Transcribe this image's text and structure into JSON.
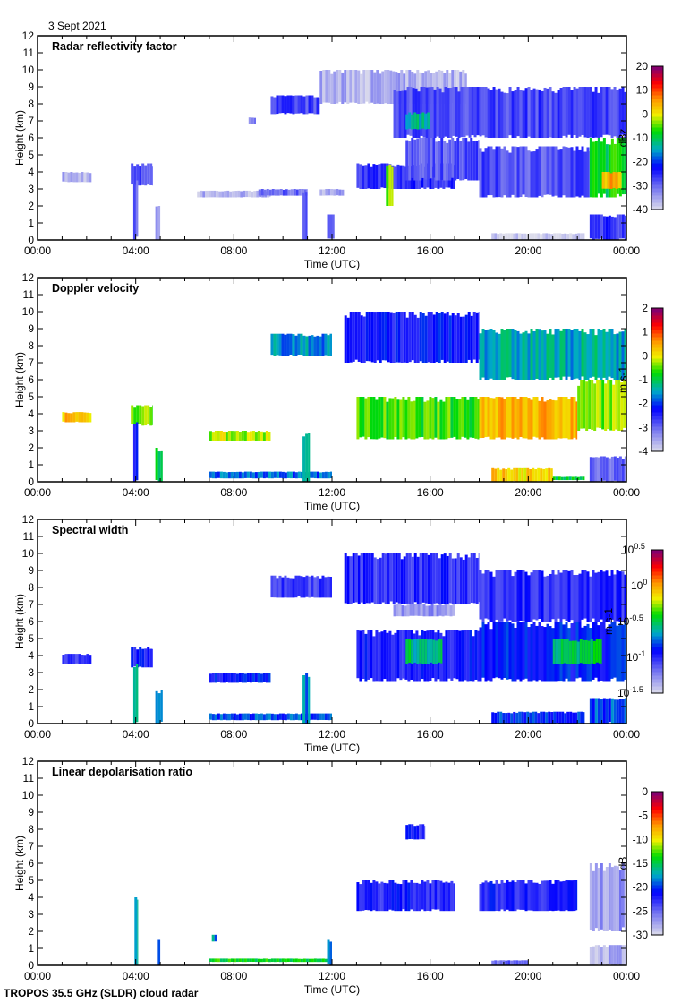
{
  "header": {
    "date": "3 Sept 2021"
  },
  "footer": {
    "caption": "TROPOS 35.5 GHz (SLDR) cloud radar"
  },
  "chart_data": [
    {
      "type": "heatmap",
      "title": "Radar reflectivity factor",
      "xlabel": "Time (UTC)",
      "ylabel": "Height (km)",
      "xlim": [
        0,
        24
      ],
      "ylim": [
        0,
        12
      ],
      "xticks": [
        "00:00",
        "04:00",
        "08:00",
        "12:00",
        "16:00",
        "20:00",
        "00:00"
      ],
      "yticks": [
        0,
        1,
        2,
        3,
        4,
        5,
        6,
        7,
        8,
        9,
        10,
        11,
        12
      ],
      "colorbar": {
        "label": "dBz",
        "range": [
          -40,
          20
        ],
        "ticks": [
          "20",
          "10",
          "0",
          "-10",
          "-20",
          "-30",
          "-40"
        ],
        "scale": "linear"
      },
      "regions": [
        {
          "t": [
            1.0,
            2.2
          ],
          "h": [
            3.4,
            4.0
          ],
          "v": -36
        },
        {
          "t": [
            3.8,
            4.7
          ],
          "h": [
            3.2,
            4.5
          ],
          "v": -28
        },
        {
          "t": [
            3.9,
            4.1
          ],
          "h": [
            0,
            3.5
          ],
          "v": -30
        },
        {
          "t": [
            4.8,
            5.0
          ],
          "h": [
            0,
            2.0
          ],
          "v": -33
        },
        {
          "t": [
            6.5,
            9.5
          ],
          "h": [
            2.5,
            2.9
          ],
          "v": -36
        },
        {
          "t": [
            8.6,
            8.9
          ],
          "h": [
            6.8,
            7.2
          ],
          "v": -30
        },
        {
          "t": [
            9.5,
            11.5
          ],
          "h": [
            7.4,
            8.5
          ],
          "v": -27
        },
        {
          "t": [
            9.0,
            11.0
          ],
          "h": [
            2.6,
            3.0
          ],
          "v": -30
        },
        {
          "t": [
            11.5,
            12.5
          ],
          "h": [
            2.6,
            3.0
          ],
          "v": -35
        },
        {
          "t": [
            10.8,
            11.0
          ],
          "h": [
            0,
            3.0
          ],
          "v": -30
        },
        {
          "t": [
            11.8,
            12.1
          ],
          "h": [
            0,
            1.5
          ],
          "v": -26
        },
        {
          "t": [
            11.5,
            17.5
          ],
          "h": [
            8.0,
            10.0
          ],
          "v": -36
        },
        {
          "t": [
            13.0,
            17.0
          ],
          "h": [
            3.0,
            4.5
          ],
          "v": -25
        },
        {
          "t": [
            14.2,
            14.5
          ],
          "h": [
            2.0,
            4.5
          ],
          "v": -5
        },
        {
          "t": [
            15.0,
            18.0
          ],
          "h": [
            3.5,
            6.0
          ],
          "v": -28
        },
        {
          "t": [
            14.5,
            24.0
          ],
          "h": [
            6.0,
            9.0
          ],
          "v": -27
        },
        {
          "t": [
            15.0,
            16.0
          ],
          "h": [
            6.5,
            7.5
          ],
          "v": -12
        },
        {
          "t": [
            18.0,
            22.5
          ],
          "h": [
            2.5,
            5.5
          ],
          "v": -28
        },
        {
          "t": [
            22.5,
            24.0
          ],
          "h": [
            2.5,
            6.0
          ],
          "v": -8
        },
        {
          "t": [
            23.0,
            23.8
          ],
          "h": [
            3.0,
            4.0
          ],
          "v": 5
        },
        {
          "t": [
            18.5,
            22.3
          ],
          "h": [
            0,
            0.4
          ],
          "v": -39
        },
        {
          "t": [
            22.5,
            24.0
          ],
          "h": [
            0,
            1.5
          ],
          "v": -25
        }
      ]
    },
    {
      "type": "heatmap",
      "title": "Doppler velocity",
      "xlabel": "Time (UTC)",
      "ylabel": "Height (km)",
      "xlim": [
        0,
        24
      ],
      "ylim": [
        0,
        12
      ],
      "xticks": [
        "00:00",
        "04:00",
        "08:00",
        "12:00",
        "16:00",
        "20:00",
        "00:00"
      ],
      "yticks": [
        0,
        1,
        2,
        3,
        4,
        5,
        6,
        7,
        8,
        9,
        10,
        11,
        12
      ],
      "colorbar": {
        "label": "m s-1",
        "range": [
          -4,
          2
        ],
        "ticks": [
          "2",
          "1",
          "0",
          "-1",
          "-2",
          "-3",
          "-4"
        ],
        "scale": "linear"
      },
      "regions": [
        {
          "t": [
            1.0,
            2.2
          ],
          "h": [
            3.5,
            4.1
          ],
          "v": 0.3
        },
        {
          "t": [
            3.8,
            4.7
          ],
          "h": [
            3.3,
            4.5
          ],
          "v": -0.4
        },
        {
          "t": [
            3.9,
            4.1
          ],
          "h": [
            0,
            3.5
          ],
          "v": -2.2
        },
        {
          "t": [
            4.8,
            5.1
          ],
          "h": [
            0,
            2.0
          ],
          "v": -0.8
        },
        {
          "t": [
            7.0,
            9.5
          ],
          "h": [
            2.4,
            3.0
          ],
          "v": -0.2
        },
        {
          "t": [
            7.0,
            12.0
          ],
          "h": [
            0.2,
            0.6
          ],
          "v": -1.8
        },
        {
          "t": [
            10.8,
            11.1
          ],
          "h": [
            0,
            3.0
          ],
          "v": -1.5
        },
        {
          "t": [
            9.5,
            12.0
          ],
          "h": [
            7.4,
            8.7
          ],
          "v": -1.6
        },
        {
          "t": [
            12.5,
            18.0
          ],
          "h": [
            7.0,
            10.0
          ],
          "v": -2.3
        },
        {
          "t": [
            18.0,
            24.0
          ],
          "h": [
            6.0,
            9.0
          ],
          "v": -1.4
        },
        {
          "t": [
            13.0,
            18.0
          ],
          "h": [
            2.5,
            5.0
          ],
          "v": -0.6
        },
        {
          "t": [
            18.0,
            22.0
          ],
          "h": [
            2.5,
            5.0
          ],
          "v": 0.4
        },
        {
          "t": [
            22.0,
            24.0
          ],
          "h": [
            3.0,
            6.0
          ],
          "v": -0.3
        },
        {
          "t": [
            18.5,
            21.0
          ],
          "h": [
            0,
            0.8
          ],
          "v": 0.2
        },
        {
          "t": [
            21.0,
            22.3
          ],
          "h": [
            0.1,
            0.3
          ],
          "v": -1.0
        },
        {
          "t": [
            22.5,
            24.0
          ],
          "h": [
            0,
            1.5
          ],
          "v": -3.0
        }
      ]
    },
    {
      "type": "heatmap",
      "title": "Spectral width",
      "xlabel": "Time (UTC)",
      "ylabel": "Height (km)",
      "xlim": [
        0,
        24
      ],
      "ylim": [
        0,
        12
      ],
      "xticks": [
        "00:00",
        "04:00",
        "08:00",
        "12:00",
        "16:00",
        "20:00",
        "00:00"
      ],
      "yticks": [
        0,
        1,
        2,
        3,
        4,
        5,
        6,
        7,
        8,
        9,
        10,
        11,
        12
      ],
      "colorbar": {
        "label": "m s-1",
        "range": [
          -1.5,
          0.5
        ],
        "ticks": [
          "10^0.5",
          "10^0",
          "10^-0.5",
          "10^-1",
          "10^-1.5"
        ],
        "scale": "log10"
      },
      "regions": [
        {
          "t": [
            1.0,
            2.2
          ],
          "h": [
            3.5,
            4.1
          ],
          "v": -1.05
        },
        {
          "t": [
            3.8,
            4.7
          ],
          "h": [
            3.3,
            4.5
          ],
          "v": -0.95
        },
        {
          "t": [
            3.9,
            4.1
          ],
          "h": [
            0,
            3.5
          ],
          "v": -0.6
        },
        {
          "t": [
            4.8,
            5.1
          ],
          "h": [
            0,
            2.0
          ],
          "v": -0.7
        },
        {
          "t": [
            7.0,
            9.5
          ],
          "h": [
            2.4,
            3.0
          ],
          "v": -0.9
        },
        {
          "t": [
            7.0,
            12.0
          ],
          "h": [
            0.2,
            0.6
          ],
          "v": -0.8
        },
        {
          "t": [
            10.8,
            11.1
          ],
          "h": [
            0,
            3.0
          ],
          "v": -0.7
        },
        {
          "t": [
            9.5,
            12.0
          ],
          "h": [
            7.4,
            8.7
          ],
          "v": -1.05
        },
        {
          "t": [
            12.5,
            18.0
          ],
          "h": [
            7.0,
            10.0
          ],
          "v": -1.0
        },
        {
          "t": [
            18.0,
            24.0
          ],
          "h": [
            6.0,
            9.0
          ],
          "v": -1.0
        },
        {
          "t": [
            14.5,
            17.0
          ],
          "h": [
            6.3,
            7.0
          ],
          "v": -1.3
        },
        {
          "t": [
            13.0,
            18.0
          ],
          "h": [
            2.5,
            5.5
          ],
          "v": -0.95
        },
        {
          "t": [
            15.0,
            16.5
          ],
          "h": [
            3.5,
            5.0
          ],
          "v": -0.55
        },
        {
          "t": [
            18.0,
            24.0
          ],
          "h": [
            2.5,
            6.0
          ],
          "v": -0.9
        },
        {
          "t": [
            21.0,
            23.0
          ],
          "h": [
            3.5,
            5.0
          ],
          "v": -0.5
        },
        {
          "t": [
            18.5,
            22.3
          ],
          "h": [
            0,
            0.7
          ],
          "v": -0.85
        },
        {
          "t": [
            22.5,
            24.0
          ],
          "h": [
            0,
            1.5
          ],
          "v": -0.8
        }
      ]
    },
    {
      "type": "heatmap",
      "title": "Linear depolarisation ratio",
      "xlabel": "Time (UTC)",
      "ylabel": "Height (km)",
      "xlim": [
        0,
        24
      ],
      "ylim": [
        0,
        12
      ],
      "xticks": [
        "00:00",
        "04:00",
        "08:00",
        "12:00",
        "16:00",
        "20:00",
        "00:00"
      ],
      "yticks": [
        0,
        1,
        2,
        3,
        4,
        5,
        6,
        7,
        8,
        9,
        10,
        11,
        12
      ],
      "colorbar": {
        "label": "dB",
        "range": [
          -30,
          0
        ],
        "ticks": [
          "0",
          "-5",
          "-10",
          "-15",
          "-20",
          "-25",
          "-30"
        ],
        "scale": "linear"
      },
      "regions": [
        {
          "t": [
            3.95,
            4.1
          ],
          "h": [
            0,
            4.0
          ],
          "v": -18
        },
        {
          "t": [
            4.9,
            5.0
          ],
          "h": [
            0,
            1.5
          ],
          "v": -18
        },
        {
          "t": [
            7.1,
            7.3
          ],
          "h": [
            1.4,
            1.8
          ],
          "v": -18
        },
        {
          "t": [
            7.0,
            12.0
          ],
          "h": [
            0.2,
            0.4
          ],
          "v": -14
        },
        {
          "t": [
            11.8,
            12.0
          ],
          "h": [
            0,
            1.5
          ],
          "v": -18
        },
        {
          "t": [
            15.0,
            15.8
          ],
          "h": [
            7.4,
            8.3
          ],
          "v": -22
        },
        {
          "t": [
            13.0,
            17.0
          ],
          "h": [
            3.2,
            5.0
          ],
          "v": -22
        },
        {
          "t": [
            18.0,
            22.0
          ],
          "h": [
            3.2,
            5.0
          ],
          "v": -22
        },
        {
          "t": [
            22.5,
            24.0
          ],
          "h": [
            2.0,
            6.0
          ],
          "v": -27
        },
        {
          "t": [
            22.5,
            24.0
          ],
          "h": [
            0,
            1.2
          ],
          "v": -28
        },
        {
          "t": [
            18.5,
            20.0
          ],
          "h": [
            0,
            0.3
          ],
          "v": -25
        }
      ]
    }
  ]
}
